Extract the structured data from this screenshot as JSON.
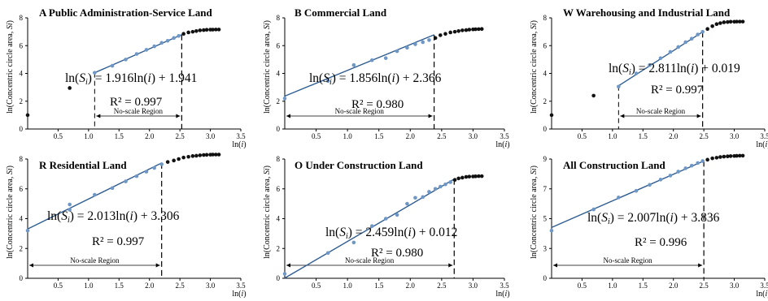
{
  "chart_data": [
    {
      "type": "scatter",
      "title": "A Public Administration-Service Land",
      "xlabel": "ln(i)",
      "ylabel": "ln(Concentric circle area, Si)",
      "xlim": [
        0,
        3.5
      ],
      "ylim": [
        0,
        8
      ],
      "xticks": [
        "0.5",
        "1.0",
        "1.5",
        "2.0",
        "2.5",
        "3.0",
        "3.5"
      ],
      "yticks": [
        "0",
        "2",
        "4",
        "6",
        "8"
      ],
      "equation": "ln(Si) = 1.916ln(i) + 1.941",
      "r2": "R² = 0.997",
      "region_label": "No-scale Region",
      "region": [
        1.1,
        2.53
      ],
      "fit": {
        "slope": 1.916,
        "intercept": 1.941,
        "x_range": [
          1.1,
          2.53
        ]
      },
      "points": [
        [
          0.0,
          1.0
        ],
        [
          0.69,
          2.95
        ],
        [
          1.1,
          4.05
        ],
        [
          1.39,
          4.55
        ],
        [
          1.61,
          5.0
        ],
        [
          1.79,
          5.4
        ],
        [
          1.95,
          5.7
        ],
        [
          2.08,
          5.95
        ],
        [
          2.2,
          6.2
        ],
        [
          2.3,
          6.35
        ],
        [
          2.4,
          6.55
        ],
        [
          2.48,
          6.7
        ],
        [
          2.56,
          6.85
        ],
        [
          2.64,
          6.95
        ],
        [
          2.71,
          7.0
        ],
        [
          2.77,
          7.05
        ],
        [
          2.83,
          7.1
        ],
        [
          2.89,
          7.12
        ],
        [
          2.94,
          7.14
        ],
        [
          3.0,
          7.15
        ],
        [
          3.04,
          7.15
        ],
        [
          3.09,
          7.16
        ],
        [
          3.14,
          7.16
        ]
      ]
    },
    {
      "type": "scatter",
      "title": "B Commercial Land",
      "xlabel": "ln(i)",
      "ylabel": "ln(Concentric circle area, Si)",
      "xlim": [
        0,
        3.5
      ],
      "ylim": [
        0,
        8
      ],
      "xticks": [
        "0.5",
        "1.0",
        "1.5",
        "2.0",
        "2.5",
        "3.0",
        "3.5"
      ],
      "yticks": [
        "0",
        "2",
        "4",
        "6",
        "8"
      ],
      "equation": "ln(Si) = 1.856ln(i) + 2.366",
      "r2": "R² = 0.980",
      "region_label": "No-scale Region",
      "region": [
        0,
        2.38
      ],
      "fit": {
        "slope": 1.856,
        "intercept": 2.366,
        "x_range": [
          0,
          2.38
        ]
      },
      "points": [
        [
          0.0,
          2.2
        ],
        [
          0.69,
          3.45
        ],
        [
          1.1,
          4.6
        ],
        [
          1.39,
          4.95
        ],
        [
          1.61,
          5.1
        ],
        [
          1.79,
          5.6
        ],
        [
          1.95,
          5.85
        ],
        [
          2.08,
          6.1
        ],
        [
          2.2,
          6.25
        ],
        [
          2.3,
          6.4
        ],
        [
          2.4,
          6.55
        ],
        [
          2.48,
          6.75
        ],
        [
          2.56,
          6.85
        ],
        [
          2.64,
          6.95
        ],
        [
          2.71,
          7.0
        ],
        [
          2.77,
          7.05
        ],
        [
          2.83,
          7.1
        ],
        [
          2.89,
          7.12
        ],
        [
          2.94,
          7.15
        ],
        [
          3.0,
          7.17
        ],
        [
          3.04,
          7.18
        ],
        [
          3.09,
          7.19
        ],
        [
          3.14,
          7.2
        ]
      ]
    },
    {
      "type": "scatter",
      "title": "W Warehousing and Industrial Land",
      "xlabel": "ln(i)",
      "ylabel": "ln(Concentric circle area, Si)",
      "xlim": [
        0,
        3.5
      ],
      "ylim": [
        0,
        8
      ],
      "xticks": [
        "0.5",
        "1.0",
        "1.5",
        "2.0",
        "2.5",
        "3.0",
        "3.5"
      ],
      "yticks": [
        "0",
        "2",
        "4",
        "6",
        "8"
      ],
      "equation": "ln(Si) = 2.811ln(i) + 0.019",
      "r2": "R² = 0.997",
      "region_label": "No-scale Region",
      "region": [
        1.1,
        2.48
      ],
      "fit": {
        "slope": 2.811,
        "intercept": 0.019,
        "x_range": [
          1.1,
          2.48
        ]
      },
      "points": [
        [
          0.0,
          1.0
        ],
        [
          0.69,
          2.4
        ],
        [
          1.1,
          3.05
        ],
        [
          1.39,
          4.0
        ],
        [
          1.61,
          4.6
        ],
        [
          1.79,
          5.1
        ],
        [
          1.95,
          5.55
        ],
        [
          2.08,
          5.9
        ],
        [
          2.2,
          6.25
        ],
        [
          2.3,
          6.5
        ],
        [
          2.4,
          6.8
        ],
        [
          2.48,
          7.0
        ],
        [
          2.56,
          7.2
        ],
        [
          2.64,
          7.4
        ],
        [
          2.71,
          7.55
        ],
        [
          2.77,
          7.62
        ],
        [
          2.83,
          7.68
        ],
        [
          2.89,
          7.7
        ],
        [
          2.94,
          7.72
        ],
        [
          3.0,
          7.72
        ],
        [
          3.04,
          7.73
        ],
        [
          3.09,
          7.73
        ],
        [
          3.14,
          7.73
        ]
      ]
    },
    {
      "type": "scatter",
      "title": "R Residential Land",
      "xlabel": "ln(i)",
      "ylabel": "ln(Concentric circle area, Si)",
      "xlim": [
        0,
        3.5
      ],
      "ylim": [
        0,
        8
      ],
      "xticks": [
        "0.5",
        "1.0",
        "1.5",
        "2.0",
        "2.5",
        "3.0",
        "3.5"
      ],
      "yticks": [
        "0",
        "2",
        "4",
        "6",
        "8"
      ],
      "equation": "ln(Si) = 2.013ln(i) + 3.306",
      "r2": "R² = 0.997",
      "region_label": "No-scale Region",
      "region": [
        0,
        2.2
      ],
      "fit": {
        "slope": 2.013,
        "intercept": 3.306,
        "x_range": [
          0,
          2.2
        ]
      },
      "points": [
        [
          0.0,
          3.2
        ],
        [
          0.69,
          4.6
        ],
        [
          0.69,
          4.95
        ],
        [
          1.1,
          5.6
        ],
        [
          1.39,
          6.05
        ],
        [
          1.61,
          6.5
        ],
        [
          1.79,
          6.85
        ],
        [
          1.95,
          7.15
        ],
        [
          2.08,
          7.4
        ],
        [
          2.2,
          7.65
        ],
        [
          2.3,
          7.8
        ],
        [
          2.4,
          7.9
        ],
        [
          2.48,
          8.0
        ],
        [
          2.56,
          8.1
        ],
        [
          2.64,
          8.15
        ],
        [
          2.71,
          8.2
        ],
        [
          2.77,
          8.22
        ],
        [
          2.83,
          8.25
        ],
        [
          2.89,
          8.27
        ],
        [
          2.94,
          8.28
        ],
        [
          3.0,
          8.29
        ],
        [
          3.04,
          8.3
        ],
        [
          3.09,
          8.3
        ],
        [
          3.14,
          8.3
        ]
      ]
    },
    {
      "type": "scatter",
      "title": "O Under Construction Land",
      "xlabel": "ln(i)",
      "ylabel": "ln(Concentric circle area, Si)",
      "xlim": [
        0,
        3.5
      ],
      "ylim": [
        0,
        8
      ],
      "xticks": [
        "0.5",
        "1.0",
        "1.5",
        "2.0",
        "2.5",
        "3.0",
        "3.5"
      ],
      "yticks": [
        "0",
        "2",
        "4",
        "6",
        "8"
      ],
      "equation": "ln(Si) = 2.459ln(i) + 0.012",
      "r2": "R² = 0.980",
      "region_label": "No-scale Region",
      "region": [
        0,
        2.7
      ],
      "fit": {
        "slope": 2.459,
        "intercept": 0.012,
        "x_range": [
          0,
          2.7
        ]
      },
      "points": [
        [
          0.0,
          0.3
        ],
        [
          0.69,
          1.7
        ],
        [
          1.1,
          2.4
        ],
        [
          1.39,
          3.5
        ],
        [
          1.61,
          4.0
        ],
        [
          1.79,
          4.25
        ],
        [
          1.95,
          5.0
        ],
        [
          2.08,
          5.4
        ],
        [
          2.2,
          5.45
        ],
        [
          2.3,
          5.8
        ],
        [
          2.4,
          6.0
        ],
        [
          2.48,
          6.15
        ],
        [
          2.56,
          6.3
        ],
        [
          2.64,
          6.45
        ],
        [
          2.71,
          6.6
        ],
        [
          2.77,
          6.7
        ],
        [
          2.83,
          6.75
        ],
        [
          2.89,
          6.8
        ],
        [
          2.94,
          6.82
        ],
        [
          3.0,
          6.83
        ],
        [
          3.04,
          6.84
        ],
        [
          3.09,
          6.85
        ],
        [
          3.14,
          6.85
        ]
      ]
    },
    {
      "type": "scatter",
      "title": "All Construction Land",
      "xlabel": "ln(i)",
      "ylabel": "ln(Concentric circle area, Si)",
      "xlim": [
        0,
        3.5
      ],
      "ylim": [
        0,
        9
      ],
      "xticks": [
        "0.5",
        "1.0",
        "1.5",
        "2.0",
        "2.5",
        "3.0",
        "3.5"
      ],
      "yticks": [
        "0",
        "3",
        "5",
        "7",
        "9"
      ],
      "equation": "ln(Si) = 2.007ln(i) + 3.836",
      "r2": "R² = 0.996",
      "region_label": "No-scale Region",
      "region": [
        0,
        2.5
      ],
      "fit": {
        "slope": 2.007,
        "intercept": 3.836,
        "x_range": [
          0,
          2.5
        ]
      },
      "points": [
        [
          0.0,
          3.6
        ],
        [
          0.69,
          5.2
        ],
        [
          1.1,
          6.1
        ],
        [
          1.39,
          6.6
        ],
        [
          1.61,
          7.05
        ],
        [
          1.79,
          7.45
        ],
        [
          1.95,
          7.75
        ],
        [
          2.08,
          8.05
        ],
        [
          2.2,
          8.3
        ],
        [
          2.3,
          8.5
        ],
        [
          2.4,
          8.7
        ],
        [
          2.48,
          8.85
        ],
        [
          2.56,
          8.95
        ],
        [
          2.64,
          9.05
        ],
        [
          2.71,
          9.1
        ],
        [
          2.77,
          9.15
        ],
        [
          2.83,
          9.18
        ],
        [
          2.89,
          9.2
        ],
        [
          2.94,
          9.22
        ],
        [
          3.0,
          9.23
        ],
        [
          3.04,
          9.24
        ],
        [
          3.09,
          9.25
        ],
        [
          3.14,
          9.25
        ]
      ]
    }
  ],
  "style": {
    "point_blue": "#6e97c6",
    "point_dark": "#111111",
    "fit_line": "#2f5d91",
    "axis": "#000000"
  }
}
